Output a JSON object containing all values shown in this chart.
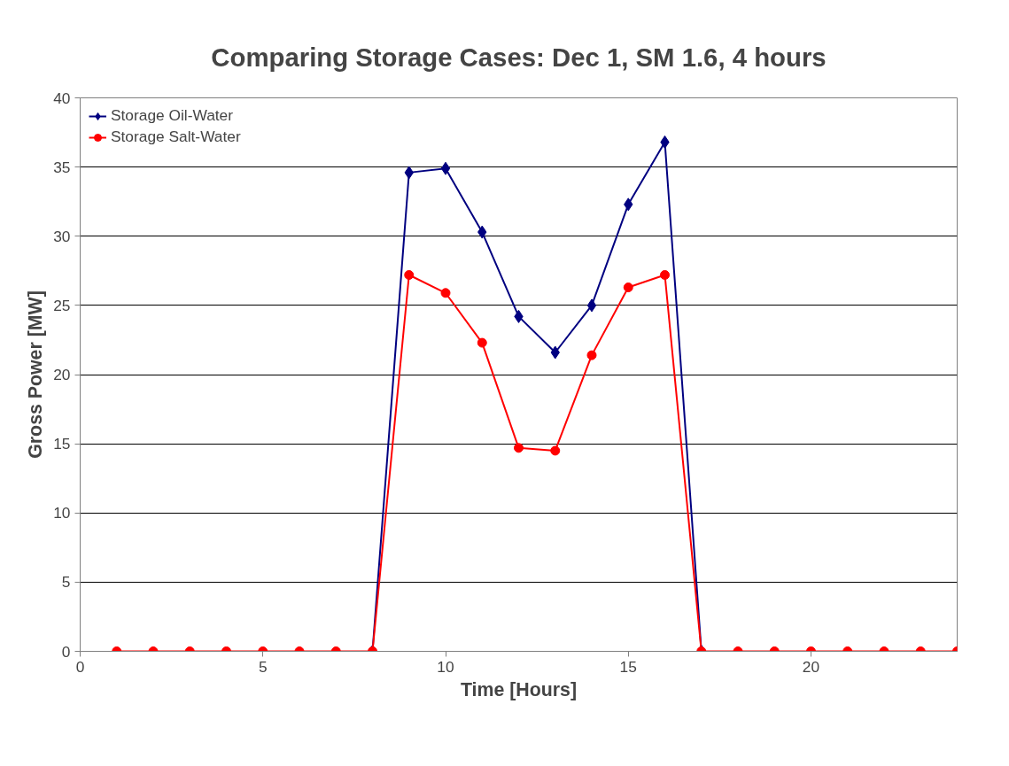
{
  "chart_data": {
    "type": "line",
    "title": "Comparing Storage Cases: Dec 1, SM 1.6, 4 hours",
    "xlabel": "Time [Hours]",
    "ylabel": "Gross Power [MW]",
    "x": [
      1,
      2,
      3,
      4,
      5,
      6,
      7,
      8,
      9,
      10,
      11,
      12,
      13,
      14,
      15,
      16,
      17,
      18,
      19,
      20,
      21,
      22,
      23,
      24
    ],
    "series": [
      {
        "name": "Storage Oil-Water",
        "color": "#000080",
        "marker": "diamond",
        "values": [
          null,
          null,
          null,
          null,
          null,
          null,
          null,
          0,
          34.6,
          34.9,
          30.3,
          24.2,
          21.6,
          25.0,
          32.3,
          36.8,
          0,
          null,
          null,
          null,
          null,
          null,
          null,
          null
        ]
      },
      {
        "name": "Storage Salt-Water",
        "color": "#ff0000",
        "marker": "circle",
        "values": [
          0,
          0,
          0,
          0,
          0,
          0,
          0,
          0,
          27.2,
          25.9,
          22.3,
          14.7,
          14.5,
          21.4,
          26.3,
          27.2,
          0,
          0,
          0,
          0,
          0,
          0,
          0,
          0
        ]
      }
    ],
    "xlim": [
      0,
      24
    ],
    "xticks": [
      0,
      5,
      10,
      15,
      20
    ],
    "ylim": [
      0,
      40
    ],
    "yticks": [
      0,
      5,
      10,
      15,
      20,
      25,
      30,
      35,
      40
    ],
    "grid": "y",
    "legend": "top left"
  }
}
